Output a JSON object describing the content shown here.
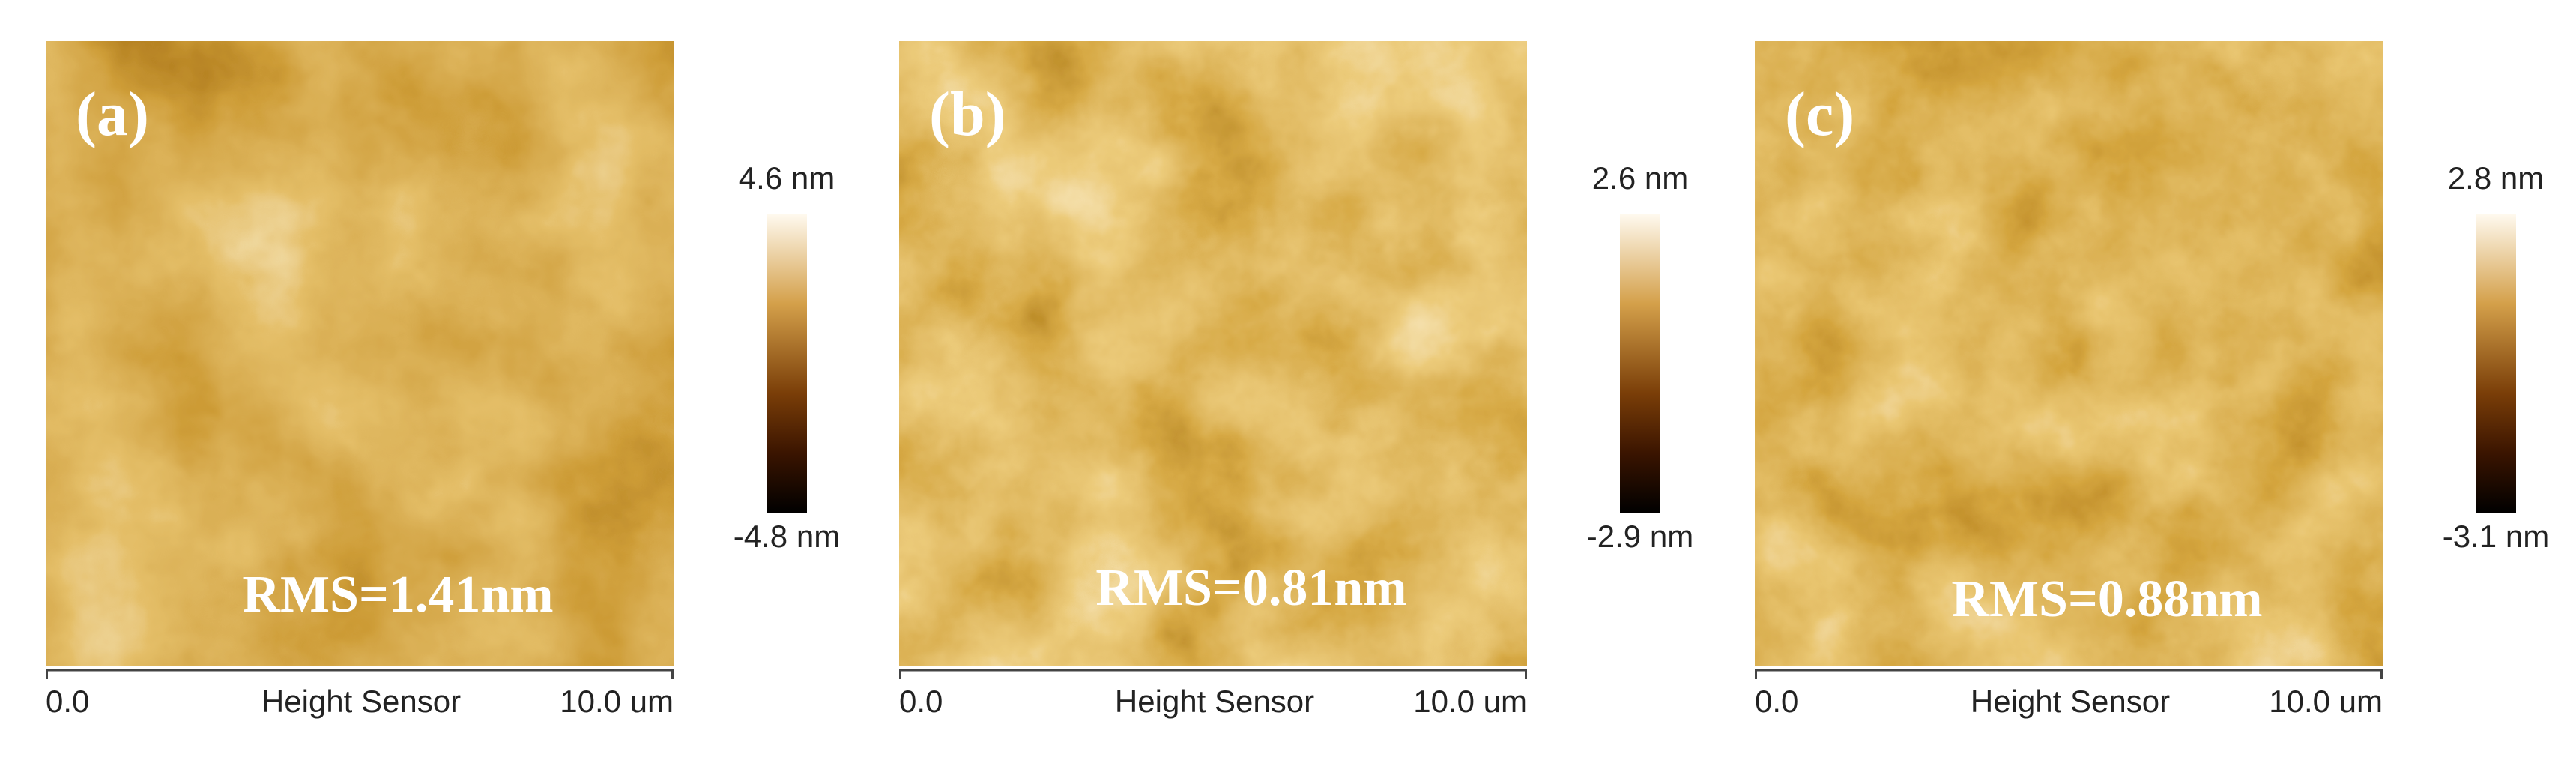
{
  "panels": [
    {
      "label": "(a)",
      "rms": "RMS=1.41nm",
      "scale_max": "4.6 nm",
      "scale_min": "-4.8 nm",
      "x_start": "0.0",
      "x_title": "Height Sensor",
      "x_end": "10.0 um"
    },
    {
      "label": "(b)",
      "rms": "RMS=0.81nm",
      "scale_max": "2.6 nm",
      "scale_min": "-2.9 nm",
      "x_start": "0.0",
      "x_title": "Height Sensor",
      "x_end": "10.0 um"
    },
    {
      "label": "(c)",
      "rms": "RMS=0.88nm",
      "scale_max": "2.8 nm",
      "scale_min": "-3.1 nm",
      "x_start": "0.0",
      "x_title": "Height Sensor",
      "x_end": "10.0 um"
    }
  ]
}
